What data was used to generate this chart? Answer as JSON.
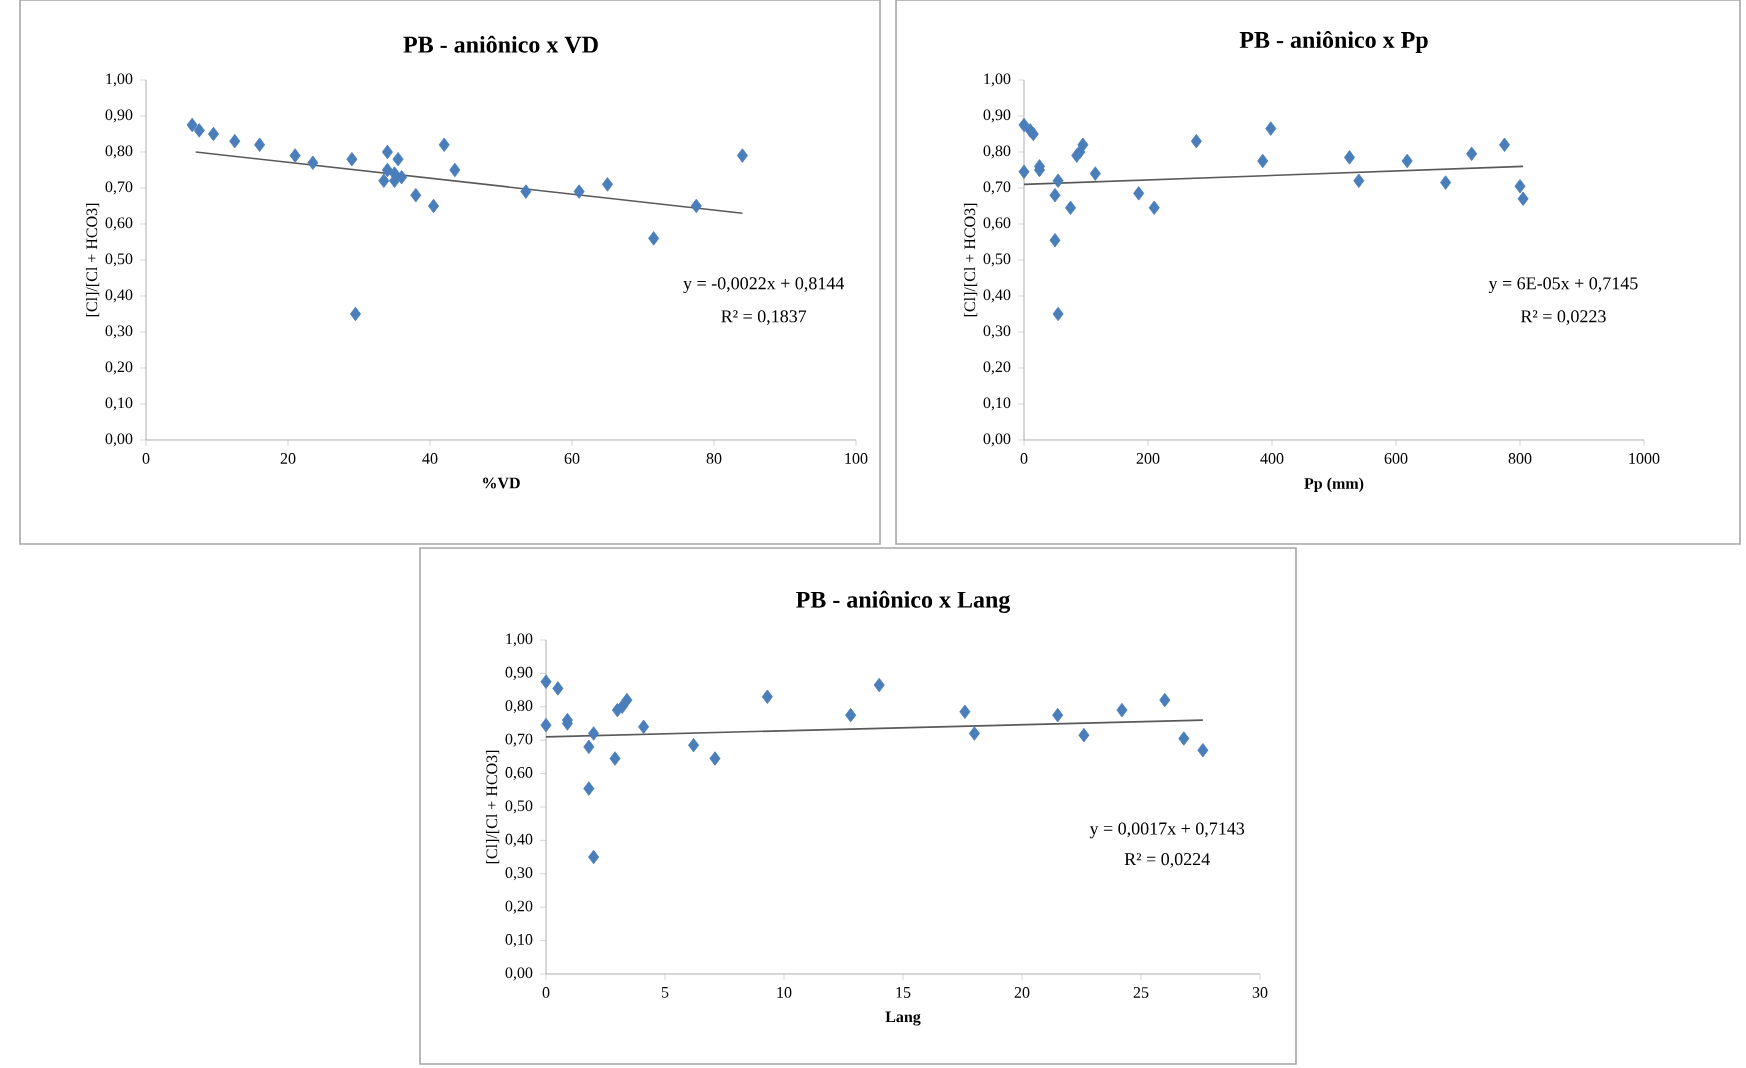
{
  "chart_data": [
    {
      "type": "scatter",
      "title": "PB - aniônico x VD",
      "xlabel": "%VD",
      "ylabel": "[Cl]/[Cl + HCO3]",
      "marker": "diamond",
      "xlim": [
        0,
        100
      ],
      "xticks": [
        0,
        20,
        40,
        60,
        80,
        100
      ],
      "ylim": [
        0,
        1
      ],
      "yticks": [
        {
          "value": 0,
          "label": "0,00"
        },
        {
          "value": 0.1,
          "label": "0,10"
        },
        {
          "value": 0.2,
          "label": "0,20"
        },
        {
          "value": 0.3,
          "label": "0,30"
        },
        {
          "value": 0.4,
          "label": "0,40"
        },
        {
          "value": 0.5,
          "label": "0,50"
        },
        {
          "value": 0.6,
          "label": "0,60"
        },
        {
          "value": 0.7,
          "label": "0,70"
        },
        {
          "value": 0.8,
          "label": "0,80"
        },
        {
          "value": 0.9,
          "label": "0,90"
        },
        {
          "value": 1,
          "label": "1,00"
        }
      ],
      "series": [
        {
          "color": "#4a7ebb",
          "x": [
            6.5,
            7.5,
            9.5,
            12.5,
            16,
            21,
            23.5,
            29,
            29.5,
            33.5,
            34,
            34,
            35,
            35.5,
            35,
            36,
            38,
            40.5,
            42,
            43.5,
            53.5,
            61,
            65,
            71.5,
            77.5,
            84
          ],
          "values": [
            0.875,
            0.86,
            0.85,
            0.83,
            0.82,
            0.79,
            0.77,
            0.78,
            0.35,
            0.72,
            0.8,
            0.75,
            0.74,
            0.78,
            0.72,
            0.73,
            0.68,
            0.65,
            0.82,
            0.75,
            0.69,
            0.69,
            0.71,
            0.56,
            0.65,
            0.79
          ]
        },
        {
          "type": "line",
          "marker": "none",
          "color": "#595959",
          "x": [
            7,
            84
          ],
          "values": [
            0.8,
            0.63
          ]
        }
      ],
      "annotations": [
        "y = -0,0022x + 0,8144",
        "R² = 0,1837"
      ]
    },
    {
      "type": "scatter",
      "title": "PB - aniônico x Pp",
      "xlabel": "Pp (mm)",
      "ylabel": "[Cl]/[Cl + HCO3]",
      "marker": "diamond",
      "xlim": [
        0,
        1000
      ],
      "xticks": [
        0,
        200,
        400,
        600,
        800,
        1000
      ],
      "ylim": [
        0,
        1
      ],
      "yticks": [
        {
          "value": 0,
          "label": "0,00"
        },
        {
          "value": 0.1,
          "label": "0,10"
        },
        {
          "value": 0.2,
          "label": "0,20"
        },
        {
          "value": 0.3,
          "label": "0,30"
        },
        {
          "value": 0.4,
          "label": "0,40"
        },
        {
          "value": 0.5,
          "label": "0,50"
        },
        {
          "value": 0.6,
          "label": "0,60"
        },
        {
          "value": 0.7,
          "label": "0,70"
        },
        {
          "value": 0.8,
          "label": "0,80"
        },
        {
          "value": 0.9,
          "label": "0,90"
        },
        {
          "value": 1,
          "label": "1,00"
        }
      ],
      "series": [
        {
          "color": "#4a7ebb",
          "x": [
            0,
            0,
            10,
            15,
            25,
            25,
            50,
            50,
            55,
            55,
            75,
            85,
            90,
            95,
            115,
            185,
            210,
            278,
            385,
            398,
            525,
            540,
            618,
            680,
            722,
            775,
            800,
            805
          ],
          "values": [
            0.875,
            0.745,
            0.86,
            0.85,
            0.76,
            0.75,
            0.68,
            0.555,
            0.72,
            0.35,
            0.645,
            0.79,
            0.8,
            0.82,
            0.74,
            0.685,
            0.645,
            0.83,
            0.775,
            0.865,
            0.785,
            0.72,
            0.775,
            0.715,
            0.795,
            0.82,
            0.705,
            0.67
          ]
        },
        {
          "type": "line",
          "marker": "none",
          "color": "#595959",
          "x": [
            0,
            805
          ],
          "values": [
            0.71,
            0.76
          ]
        }
      ],
      "annotations": [
        "y = 6E-05x + 0,7145",
        "R² = 0,0223"
      ]
    },
    {
      "type": "scatter",
      "title": "PB - aniônico x Lang",
      "xlabel": "Lang",
      "ylabel": "[Cl]/[Cl + HCO3]",
      "marker": "diamond",
      "xlim": [
        0,
        30
      ],
      "xticks": [
        0,
        5,
        10,
        15,
        20,
        25,
        30
      ],
      "ylim": [
        0,
        1
      ],
      "yticks": [
        {
          "value": 0,
          "label": "0,00"
        },
        {
          "value": 0.1,
          "label": "0,10"
        },
        {
          "value": 0.2,
          "label": "0,20"
        },
        {
          "value": 0.3,
          "label": "0,30"
        },
        {
          "value": 0.4,
          "label": "0,40"
        },
        {
          "value": 0.5,
          "label": "0,50"
        },
        {
          "value": 0.6,
          "label": "0,60"
        },
        {
          "value": 0.7,
          "label": "0,70"
        },
        {
          "value": 0.8,
          "label": "0,80"
        },
        {
          "value": 0.9,
          "label": "0,90"
        },
        {
          "value": 1,
          "label": "1,00"
        }
      ],
      "series": [
        {
          "color": "#4a7ebb",
          "x": [
            0,
            0,
            0.5,
            0.9,
            0.9,
            1.8,
            1.8,
            2,
            2,
            2.9,
            3,
            3.2,
            3.4,
            4.1,
            6.2,
            7.1,
            9.3,
            12.8,
            14,
            17.6,
            18,
            21.5,
            22.6,
            24.2,
            26,
            26.8,
            27.6
          ],
          "values": [
            0.875,
            0.745,
            0.855,
            0.76,
            0.75,
            0.68,
            0.555,
            0.72,
            0.35,
            0.645,
            0.79,
            0.8,
            0.82,
            0.74,
            0.685,
            0.645,
            0.83,
            0.775,
            0.865,
            0.785,
            0.72,
            0.775,
            0.715,
            0.79,
            0.82,
            0.705,
            0.67
          ]
        },
        {
          "type": "line",
          "marker": "none",
          "color": "#595959",
          "x": [
            0,
            27.6
          ],
          "values": [
            0.71,
            0.76
          ]
        }
      ],
      "annotations": [
        "y = 0,0017x + 0,7143",
        "R² = 0,0224"
      ]
    }
  ]
}
